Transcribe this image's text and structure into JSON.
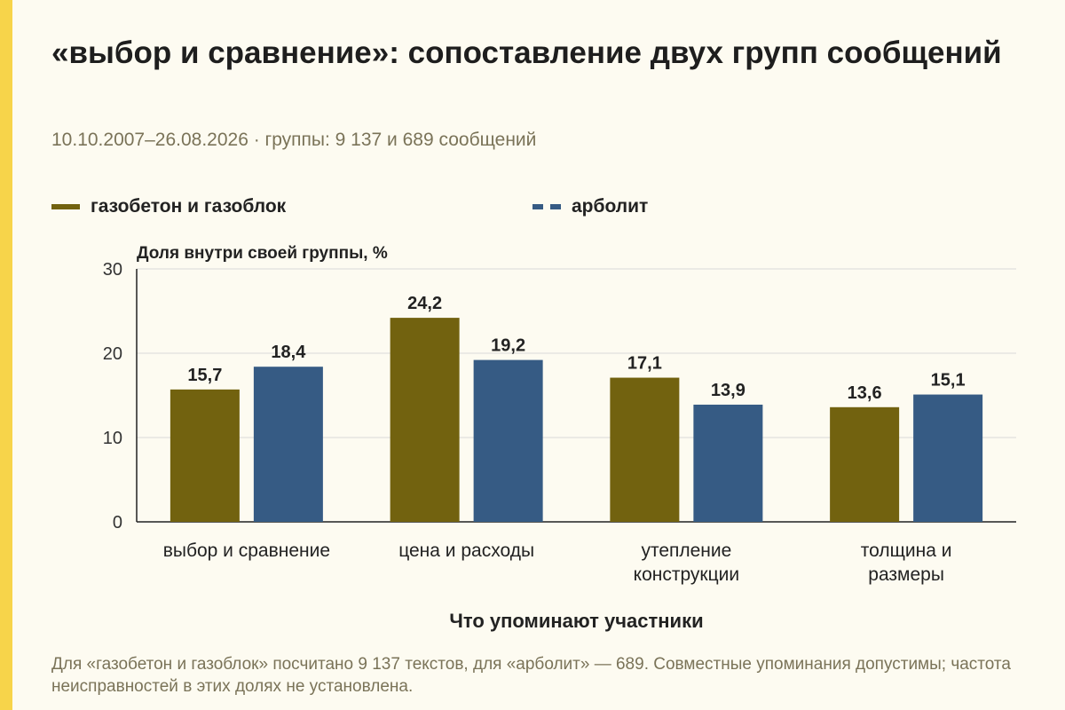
{
  "title": "«выбор и сравнение»: сопоставление двух групп сообщений",
  "subtitle": "10.10.2007–26.08.2026 · группы: 9 137 и 689 сообщений",
  "footnote": "Для «газобетон и газоблок» посчитано 9 137 текстов, для «арболит» — 689. Совместные упоминания допустимы; частота неисправностей в этих долях не установлена.",
  "colors": {
    "accent_stripe": "#f7d44a",
    "series_1": "#72620f",
    "series_2": "#365b84",
    "grid": "#d9d9d9"
  },
  "chart_data": {
    "type": "bar",
    "title": "«выбор и сравнение»: сопоставление двух групп сообщений",
    "ylabel": "Доля внутри своей группы, %",
    "xlabel": "Что упоминают участники",
    "ylim": [
      0,
      30
    ],
    "yticks": [
      0,
      10,
      20,
      30
    ],
    "categories": [
      [
        "выбор и сравнение"
      ],
      [
        "цена и расходы"
      ],
      [
        "утепление",
        "конструкции"
      ],
      [
        "толщина и",
        "размеры"
      ]
    ],
    "series": [
      {
        "name": "газобетон и газоблок",
        "values": [
          15.7,
          24.2,
          17.1,
          13.6
        ],
        "labels": [
          "15,7",
          "24,2",
          "17,1",
          "13,6"
        ],
        "line_style": "solid"
      },
      {
        "name": "арболит",
        "values": [
          18.4,
          19.2,
          13.9,
          15.1
        ],
        "labels": [
          "18,4",
          "19,2",
          "13,9",
          "15,1"
        ],
        "line_style": "dashed"
      }
    ],
    "legend_position": "top",
    "grid": true
  }
}
